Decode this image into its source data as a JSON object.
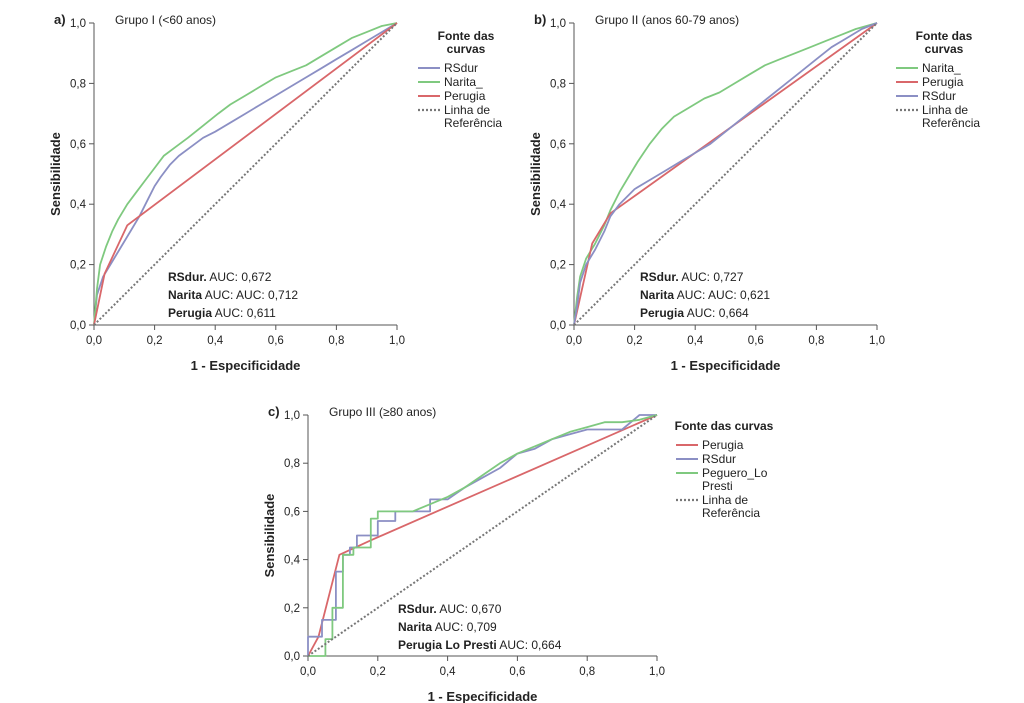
{
  "chart_data": [
    {
      "type": "line",
      "panel_letter": "a)",
      "group_title": "Grupo I (<60 anos)",
      "xlabel": "1 - Especificidade",
      "ylabel": "Sensibilidade",
      "xlim": [
        0,
        1
      ],
      "ylim": [
        0,
        1
      ],
      "x_ticks": [
        "0,0",
        "0,2",
        "0,4",
        "0,6",
        "0,8",
        "1,0"
      ],
      "y_ticks": [
        "0,0",
        "0,2",
        "0,4",
        "0,6",
        "0,8",
        "1,0"
      ],
      "legend_title": "Fonte das curvas",
      "legend_position": "right",
      "series": [
        {
          "name": "RSdur",
          "color": "#8b8fc4",
          "style": "solid",
          "points": [
            [
              0,
              0
            ],
            [
              0.01,
              0.1
            ],
            [
              0.03,
              0.16
            ],
            [
              0.06,
              0.21
            ],
            [
              0.09,
              0.26
            ],
            [
              0.12,
              0.31
            ],
            [
              0.15,
              0.36
            ],
            [
              0.18,
              0.42
            ],
            [
              0.2,
              0.46
            ],
            [
              0.22,
              0.49
            ],
            [
              0.25,
              0.53
            ],
            [
              0.28,
              0.56
            ],
            [
              0.32,
              0.59
            ],
            [
              0.36,
              0.62
            ],
            [
              0.4,
              0.64
            ],
            [
              0.45,
              0.67
            ],
            [
              0.5,
              0.7
            ],
            [
              0.55,
              0.73
            ],
            [
              0.6,
              0.76
            ],
            [
              0.65,
              0.79
            ],
            [
              0.7,
              0.82
            ],
            [
              0.75,
              0.85
            ],
            [
              0.8,
              0.88
            ],
            [
              0.85,
              0.91
            ],
            [
              0.9,
              0.94
            ],
            [
              0.95,
              0.97
            ],
            [
              1,
              1
            ]
          ]
        },
        {
          "name": "Narita_",
          "color": "#7fc97f",
          "style": "solid",
          "points": [
            [
              0,
              0
            ],
            [
              0.01,
              0.12
            ],
            [
              0.02,
              0.2
            ],
            [
              0.04,
              0.26
            ],
            [
              0.06,
              0.31
            ],
            [
              0.08,
              0.35
            ],
            [
              0.11,
              0.4
            ],
            [
              0.14,
              0.44
            ],
            [
              0.17,
              0.48
            ],
            [
              0.2,
              0.52
            ],
            [
              0.23,
              0.56
            ],
            [
              0.27,
              0.59
            ],
            [
              0.31,
              0.62
            ],
            [
              0.36,
              0.66
            ],
            [
              0.41,
              0.7
            ],
            [
              0.45,
              0.73
            ],
            [
              0.5,
              0.76
            ],
            [
              0.55,
              0.79
            ],
            [
              0.6,
              0.82
            ],
            [
              0.65,
              0.84
            ],
            [
              0.7,
              0.86
            ],
            [
              0.75,
              0.89
            ],
            [
              0.8,
              0.92
            ],
            [
              0.85,
              0.95
            ],
            [
              0.9,
              0.97
            ],
            [
              0.95,
              0.99
            ],
            [
              1,
              1
            ]
          ]
        },
        {
          "name": "Perugia",
          "color": "#d9676a",
          "style": "solid",
          "points": [
            [
              0,
              0
            ],
            [
              0.035,
              0.17
            ],
            [
              0.11,
              0.33
            ],
            [
              1,
              1
            ]
          ]
        },
        {
          "name": "Linha de\nReferência",
          "color": "#777777",
          "style": "dotted",
          "points": [
            [
              0,
              0
            ],
            [
              1,
              1
            ]
          ]
        }
      ],
      "auc_lines": [
        {
          "name": "RSdur.",
          "text": " AUC: 0,672"
        },
        {
          "name": "Narita",
          "text": " AUC: AUC: 0,712"
        },
        {
          "name": "Perugia",
          "text": " AUC: 0,611"
        }
      ]
    },
    {
      "type": "line",
      "panel_letter": "b)",
      "group_title": "Grupo II (anos 60-79 anos)",
      "xlabel": "1 - Especificidade",
      "ylabel": "Sensibilidade",
      "xlim": [
        0,
        1
      ],
      "ylim": [
        0,
        1
      ],
      "x_ticks": [
        "0,0",
        "0,2",
        "0,4",
        "0,6",
        "0,8",
        "1,0"
      ],
      "y_ticks": [
        "0,0",
        "0,2",
        "0,4",
        "0,6",
        "0,8",
        "1,0"
      ],
      "legend_title": "Fonte das curvas",
      "legend_position": "right",
      "series": [
        {
          "name": "Narita_",
          "color": "#7fc97f",
          "style": "solid",
          "points": [
            [
              0,
              0
            ],
            [
              0.01,
              0.09
            ],
            [
              0.02,
              0.16
            ],
            [
              0.04,
              0.22
            ],
            [
              0.07,
              0.27
            ],
            [
              0.1,
              0.33
            ],
            [
              0.12,
              0.38
            ],
            [
              0.15,
              0.44
            ],
            [
              0.18,
              0.49
            ],
            [
              0.21,
              0.54
            ],
            [
              0.25,
              0.6
            ],
            [
              0.29,
              0.65
            ],
            [
              0.33,
              0.69
            ],
            [
              0.38,
              0.72
            ],
            [
              0.43,
              0.75
            ],
            [
              0.48,
              0.77
            ],
            [
              0.53,
              0.8
            ],
            [
              0.58,
              0.83
            ],
            [
              0.63,
              0.86
            ],
            [
              0.68,
              0.88
            ],
            [
              0.73,
              0.9
            ],
            [
              0.78,
              0.92
            ],
            [
              0.83,
              0.94
            ],
            [
              0.88,
              0.96
            ],
            [
              0.93,
              0.98
            ],
            [
              1,
              1
            ]
          ]
        },
        {
          "name": "Perugia",
          "color": "#d9676a",
          "style": "solid",
          "points": [
            [
              0,
              0
            ],
            [
              0.06,
              0.27
            ],
            [
              0.12,
              0.37
            ],
            [
              1,
              1
            ]
          ]
        },
        {
          "name": "RSdur",
          "color": "#8b8fc4",
          "style": "solid",
          "points": [
            [
              0,
              0
            ],
            [
              0.01,
              0.06
            ],
            [
              0.02,
              0.14
            ],
            [
              0.04,
              0.2
            ],
            [
              0.07,
              0.25
            ],
            [
              0.1,
              0.31
            ],
            [
              0.12,
              0.36
            ],
            [
              0.15,
              0.4
            ],
            [
              0.2,
              0.45
            ],
            [
              0.25,
              0.48
            ],
            [
              0.3,
              0.51
            ],
            [
              0.35,
              0.54
            ],
            [
              0.4,
              0.57
            ],
            [
              0.45,
              0.6
            ],
            [
              0.5,
              0.64
            ],
            [
              0.55,
              0.68
            ],
            [
              0.6,
              0.72
            ],
            [
              0.65,
              0.76
            ],
            [
              0.7,
              0.8
            ],
            [
              0.75,
              0.84
            ],
            [
              0.8,
              0.88
            ],
            [
              0.85,
              0.92
            ],
            [
              0.9,
              0.95
            ],
            [
              0.95,
              0.98
            ],
            [
              1,
              1
            ]
          ]
        },
        {
          "name": "Linha de\nReferência",
          "color": "#777777",
          "style": "dotted",
          "points": [
            [
              0,
              0
            ],
            [
              1,
              1
            ]
          ]
        }
      ],
      "auc_lines": [
        {
          "name": "RSdur.",
          "text": " AUC: 0,727"
        },
        {
          "name": "Narita",
          "text": " AUC: AUC: 0,621"
        },
        {
          "name": "Perugia",
          "text": " AUC: 0,664"
        }
      ]
    },
    {
      "type": "line",
      "panel_letter": "c)",
      "group_title": "Grupo III (≥80 anos)",
      "xlabel": "1 - Especificidade",
      "ylabel": "Sensibilidade",
      "xlim": [
        0,
        1
      ],
      "ylim": [
        0,
        1
      ],
      "x_ticks": [
        "0,0",
        "0,2",
        "0,4",
        "0,6",
        "0,8",
        "1,0"
      ],
      "y_ticks": [
        "0,0",
        "0,2",
        "0,4",
        "0,6",
        "0,8",
        "1,0"
      ],
      "legend_title": "Fonte das curvas",
      "legend_position": "right",
      "series": [
        {
          "name": "Perugia",
          "color": "#d9676a",
          "style": "solid",
          "points": [
            [
              0,
              0
            ],
            [
              0.03,
              0.08
            ],
            [
              0.09,
              0.42
            ],
            [
              0.18,
              0.48
            ],
            [
              1,
              1
            ]
          ]
        },
        {
          "name": "RSdur",
          "color": "#8b8fc4",
          "style": "solid",
          "points": [
            [
              0,
              0
            ],
            [
              0,
              0.08
            ],
            [
              0.04,
              0.08
            ],
            [
              0.04,
              0.15
            ],
            [
              0.08,
              0.15
            ],
            [
              0.08,
              0.35
            ],
            [
              0.1,
              0.35
            ],
            [
              0.1,
              0.42
            ],
            [
              0.12,
              0.42
            ],
            [
              0.12,
              0.45
            ],
            [
              0.14,
              0.45
            ],
            [
              0.14,
              0.5
            ],
            [
              0.2,
              0.5
            ],
            [
              0.2,
              0.56
            ],
            [
              0.25,
              0.56
            ],
            [
              0.25,
              0.6
            ],
            [
              0.35,
              0.6
            ],
            [
              0.35,
              0.65
            ],
            [
              0.4,
              0.65
            ],
            [
              0.45,
              0.7
            ],
            [
              0.5,
              0.74
            ],
            [
              0.55,
              0.78
            ],
            [
              0.6,
              0.84
            ],
            [
              0.65,
              0.86
            ],
            [
              0.7,
              0.9
            ],
            [
              0.75,
              0.92
            ],
            [
              0.8,
              0.94
            ],
            [
              0.85,
              0.94
            ],
            [
              0.9,
              0.94
            ],
            [
              0.95,
              1
            ],
            [
              1,
              1
            ]
          ]
        },
        {
          "name": "Peguero_Lo\nPresti",
          "color": "#7fc97f",
          "style": "solid",
          "points": [
            [
              0,
              0
            ],
            [
              0.05,
              0
            ],
            [
              0.05,
              0.07
            ],
            [
              0.07,
              0.07
            ],
            [
              0.07,
              0.2
            ],
            [
              0.1,
              0.2
            ],
            [
              0.1,
              0.42
            ],
            [
              0.13,
              0.42
            ],
            [
              0.13,
              0.45
            ],
            [
              0.18,
              0.45
            ],
            [
              0.18,
              0.57
            ],
            [
              0.2,
              0.57
            ],
            [
              0.2,
              0.6
            ],
            [
              0.26,
              0.6
            ],
            [
              0.3,
              0.6
            ],
            [
              0.35,
              0.63
            ],
            [
              0.4,
              0.66
            ],
            [
              0.45,
              0.7
            ],
            [
              0.5,
              0.75
            ],
            [
              0.55,
              0.8
            ],
            [
              0.6,
              0.84
            ],
            [
              0.65,
              0.87
            ],
            [
              0.7,
              0.9
            ],
            [
              0.75,
              0.93
            ],
            [
              0.8,
              0.95
            ],
            [
              0.85,
              0.97
            ],
            [
              0.9,
              0.97
            ],
            [
              0.95,
              0.98
            ],
            [
              1,
              1
            ]
          ]
        },
        {
          "name": "Linha de\nReferência",
          "color": "#777777",
          "style": "dotted",
          "points": [
            [
              0,
              0
            ],
            [
              1,
              1
            ]
          ]
        }
      ],
      "auc_lines": [
        {
          "name": "RSdur.",
          "text": " AUC: 0,670"
        },
        {
          "name": "Narita",
          "text": " AUC: 0,709"
        },
        {
          "name": "Perugia Lo Presti",
          "text": " AUC: 0,664"
        }
      ]
    }
  ]
}
